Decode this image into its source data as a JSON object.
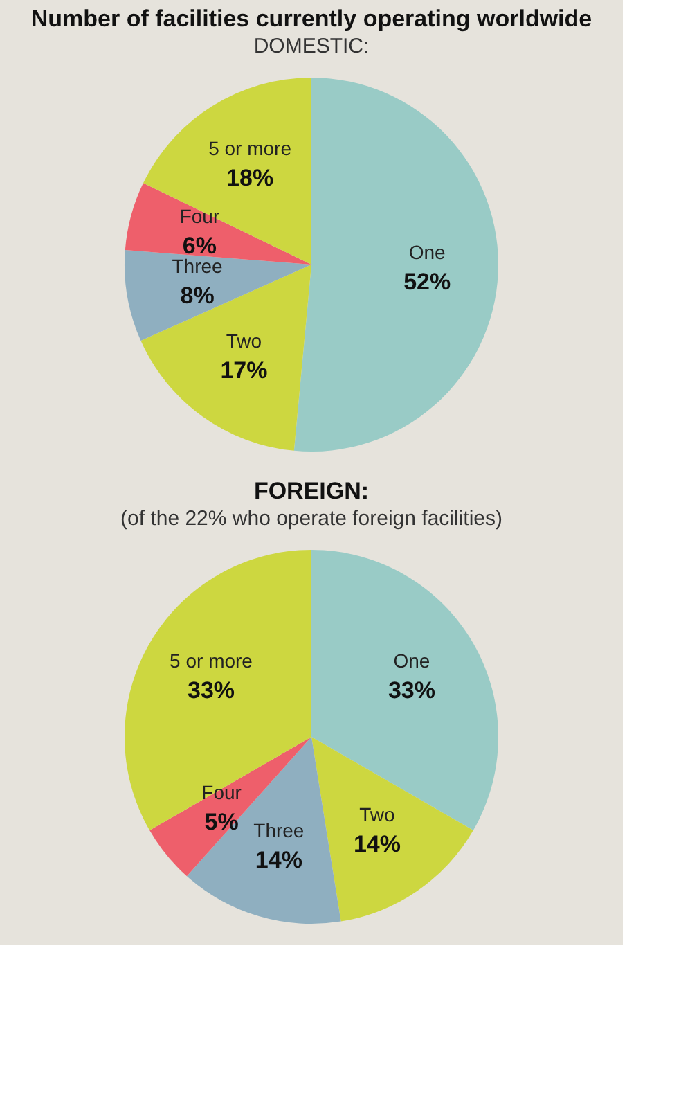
{
  "chart_data": [
    {
      "type": "pie",
      "title": "Number of facilities currently operating worldwide",
      "subtitle": "DOMESTIC:",
      "categories": [
        "One",
        "Two",
        "Three",
        "Four",
        "5 or more"
      ],
      "values": [
        52,
        17,
        8,
        6,
        18
      ],
      "colors": [
        "#99cbc6",
        "#cdd740",
        "#8fafc0",
        "#ee5f6b",
        "#cdd740"
      ],
      "value_labels": [
        "52%",
        "17%",
        "8%",
        "6%",
        "18%"
      ]
    },
    {
      "type": "pie",
      "title": "FOREIGN:",
      "subtitle": "(of the 22% who operate foreign facilities)",
      "categories": [
        "One",
        "Two",
        "Three",
        "Four",
        "5 or more"
      ],
      "values": [
        33,
        14,
        14,
        5,
        33
      ],
      "colors": [
        "#99cbc6",
        "#cdd740",
        "#8fafc0",
        "#ee5f6b",
        "#cdd740"
      ],
      "value_labels": [
        "33%",
        "14%",
        "14%",
        "5%",
        "33%"
      ]
    }
  ]
}
